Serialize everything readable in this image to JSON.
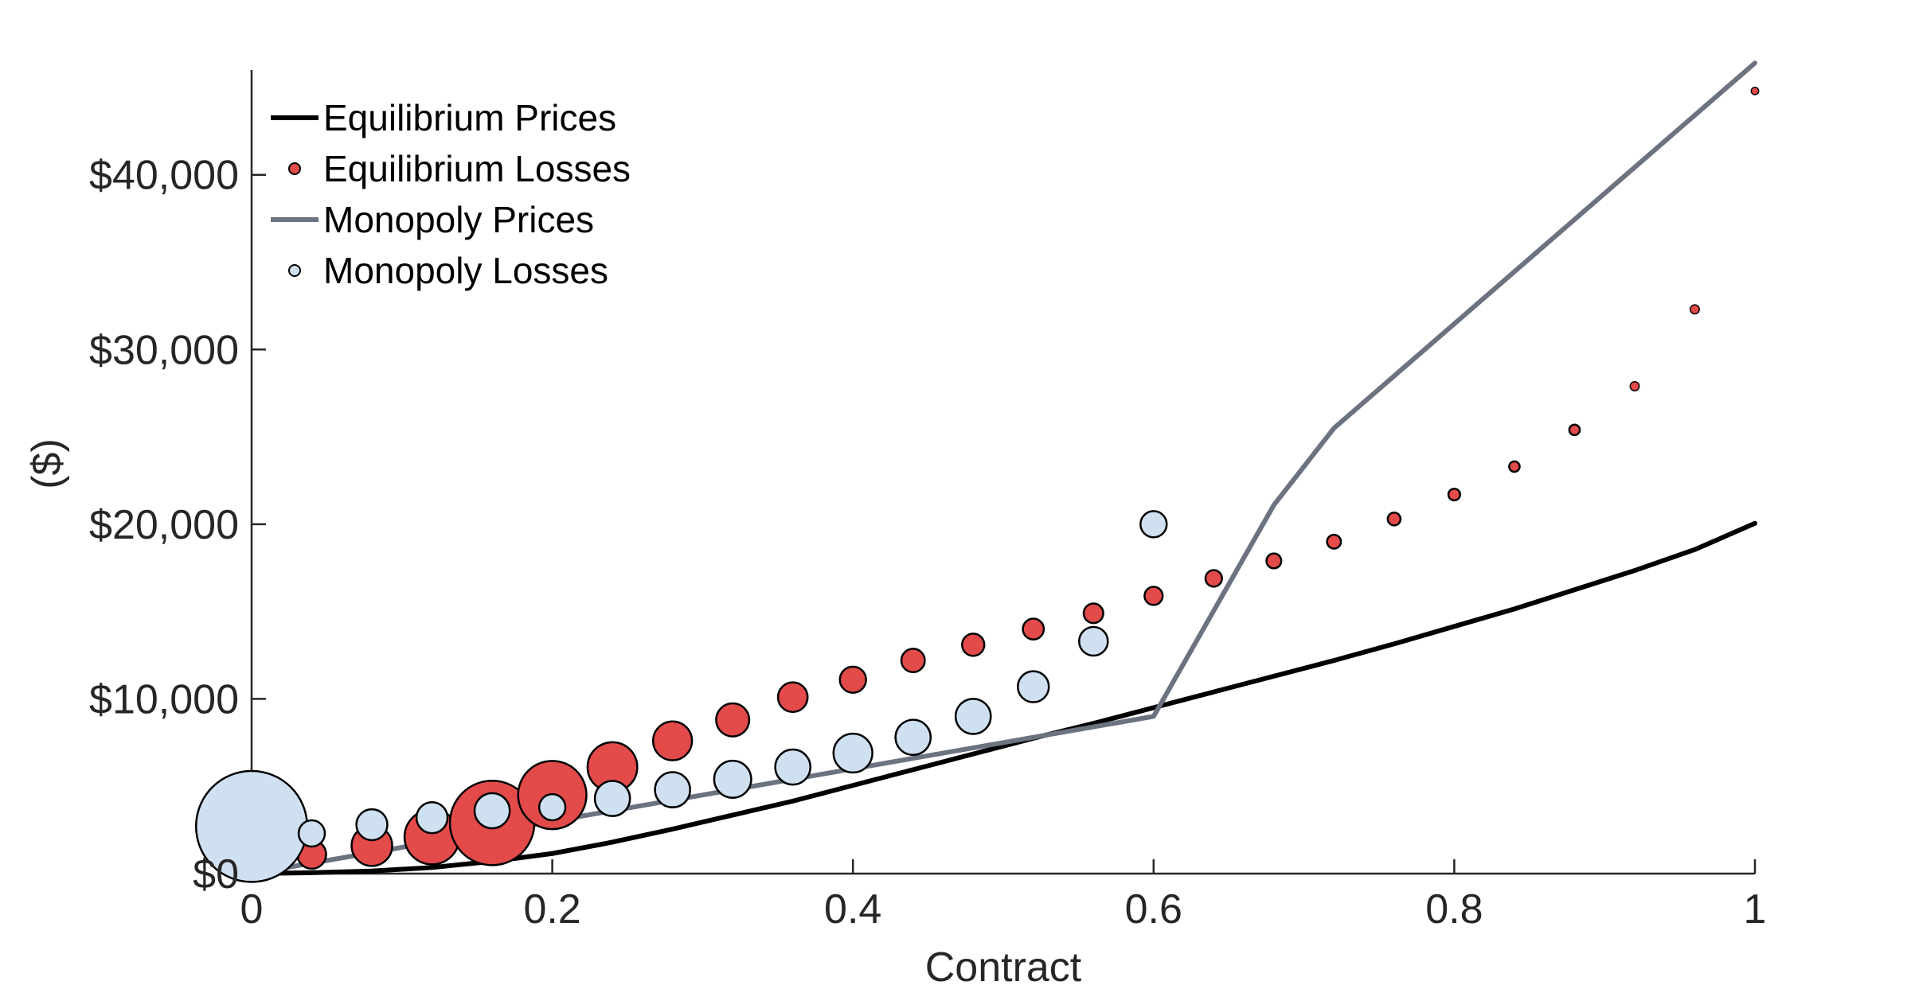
{
  "chart_data": {
    "type": "scatter",
    "xlabel": "Contract",
    "ylabel": "($)",
    "xlim": [
      0,
      1
    ],
    "ylim": [
      0,
      46000
    ],
    "x_ticks": [
      {
        "value": 0,
        "label": "0"
      },
      {
        "value": 0.2,
        "label": "0.2"
      },
      {
        "value": 0.4,
        "label": "0.4"
      },
      {
        "value": 0.6,
        "label": "0.6"
      },
      {
        "value": 0.8,
        "label": "0.8"
      },
      {
        "value": 1,
        "label": "1"
      }
    ],
    "y_ticks": [
      {
        "value": 0,
        "label": "$0"
      },
      {
        "value": 10000,
        "label": "$10,000"
      },
      {
        "value": 20000,
        "label": "$20,000"
      },
      {
        "value": 30000,
        "label": "$30,000"
      },
      {
        "value": 40000,
        "label": "$40,000"
      }
    ],
    "grid": false,
    "legend_position": "top-left",
    "colors": {
      "equilibrium_prices": "#000000",
      "equilibrium_losses": "#e34a4a",
      "monopoly_prices": "#6b7280",
      "monopoly_losses": "#cfe0f0",
      "marker_edge": "#000000",
      "axis": "#262626"
    },
    "series": [
      {
        "name": "Equilibrium Prices",
        "kind": "line",
        "x": [
          0,
          0.04,
          0.08,
          0.12,
          0.16,
          0.2,
          0.24,
          0.28,
          0.32,
          0.36,
          0.4,
          0.44,
          0.48,
          0.52,
          0.56,
          0.6,
          0.64,
          0.68,
          0.72,
          0.76,
          0.8,
          0.84,
          0.88,
          0.92,
          0.96,
          1.0
        ],
        "y": [
          0,
          50,
          150,
          350,
          700,
          1150,
          1800,
          2550,
          3350,
          4150,
          5050,
          5950,
          6850,
          7750,
          8600,
          9500,
          10400,
          11300,
          12200,
          13150,
          14150,
          15150,
          16250,
          17350,
          18550,
          20050
        ]
      },
      {
        "name": "Equilibrium Losses",
        "kind": "bubble",
        "x": [
          0.04,
          0.08,
          0.12,
          0.16,
          0.2,
          0.24,
          0.28,
          0.32,
          0.36,
          0.4,
          0.44,
          0.48,
          0.52,
          0.56,
          0.6,
          0.64,
          0.68,
          0.72,
          0.76,
          0.8,
          0.84,
          0.88,
          0.92,
          0.96,
          1.0
        ],
        "y": [
          1100,
          1600,
          2100,
          2900,
          4500,
          6100,
          7600,
          8800,
          10100,
          11100,
          12200,
          13100,
          14000,
          14900,
          15900,
          16900,
          17900,
          19000,
          20300,
          21700,
          23300,
          25400,
          27900,
          32300,
          44800
        ],
        "size": [
          0.03,
          0.06,
          0.11,
          0.26,
          0.17,
          0.09,
          0.055,
          0.04,
          0.032,
          0.025,
          0.02,
          0.018,
          0.016,
          0.014,
          0.012,
          0.01,
          0.008,
          0.007,
          0.006,
          0.005,
          0.004,
          0.004,
          0.003,
          0.003,
          0.002
        ]
      },
      {
        "name": "Monopoly Prices",
        "kind": "line",
        "x": [
          0,
          0.6,
          0.68,
          0.72,
          1.0
        ],
        "y": [
          0,
          9000,
          21100,
          25500,
          46400
        ]
      },
      {
        "name": "Monopoly Losses",
        "kind": "bubble",
        "x": [
          0,
          0.04,
          0.08,
          0.12,
          0.16,
          0.2,
          0.24,
          0.28,
          0.32,
          0.36,
          0.4,
          0.44,
          0.48,
          0.52,
          0.56,
          0.6
        ],
        "y": [
          2700,
          2300,
          2800,
          3200,
          3600,
          3800,
          4300,
          4800,
          5400,
          6100,
          6900,
          7800,
          9000,
          10700,
          13300,
          20000
        ],
        "size": [
          0.45,
          0.025,
          0.035,
          0.035,
          0.045,
          0.025,
          0.045,
          0.045,
          0.05,
          0.045,
          0.055,
          0.045,
          0.045,
          0.035,
          0.03,
          0.025
        ]
      }
    ]
  }
}
